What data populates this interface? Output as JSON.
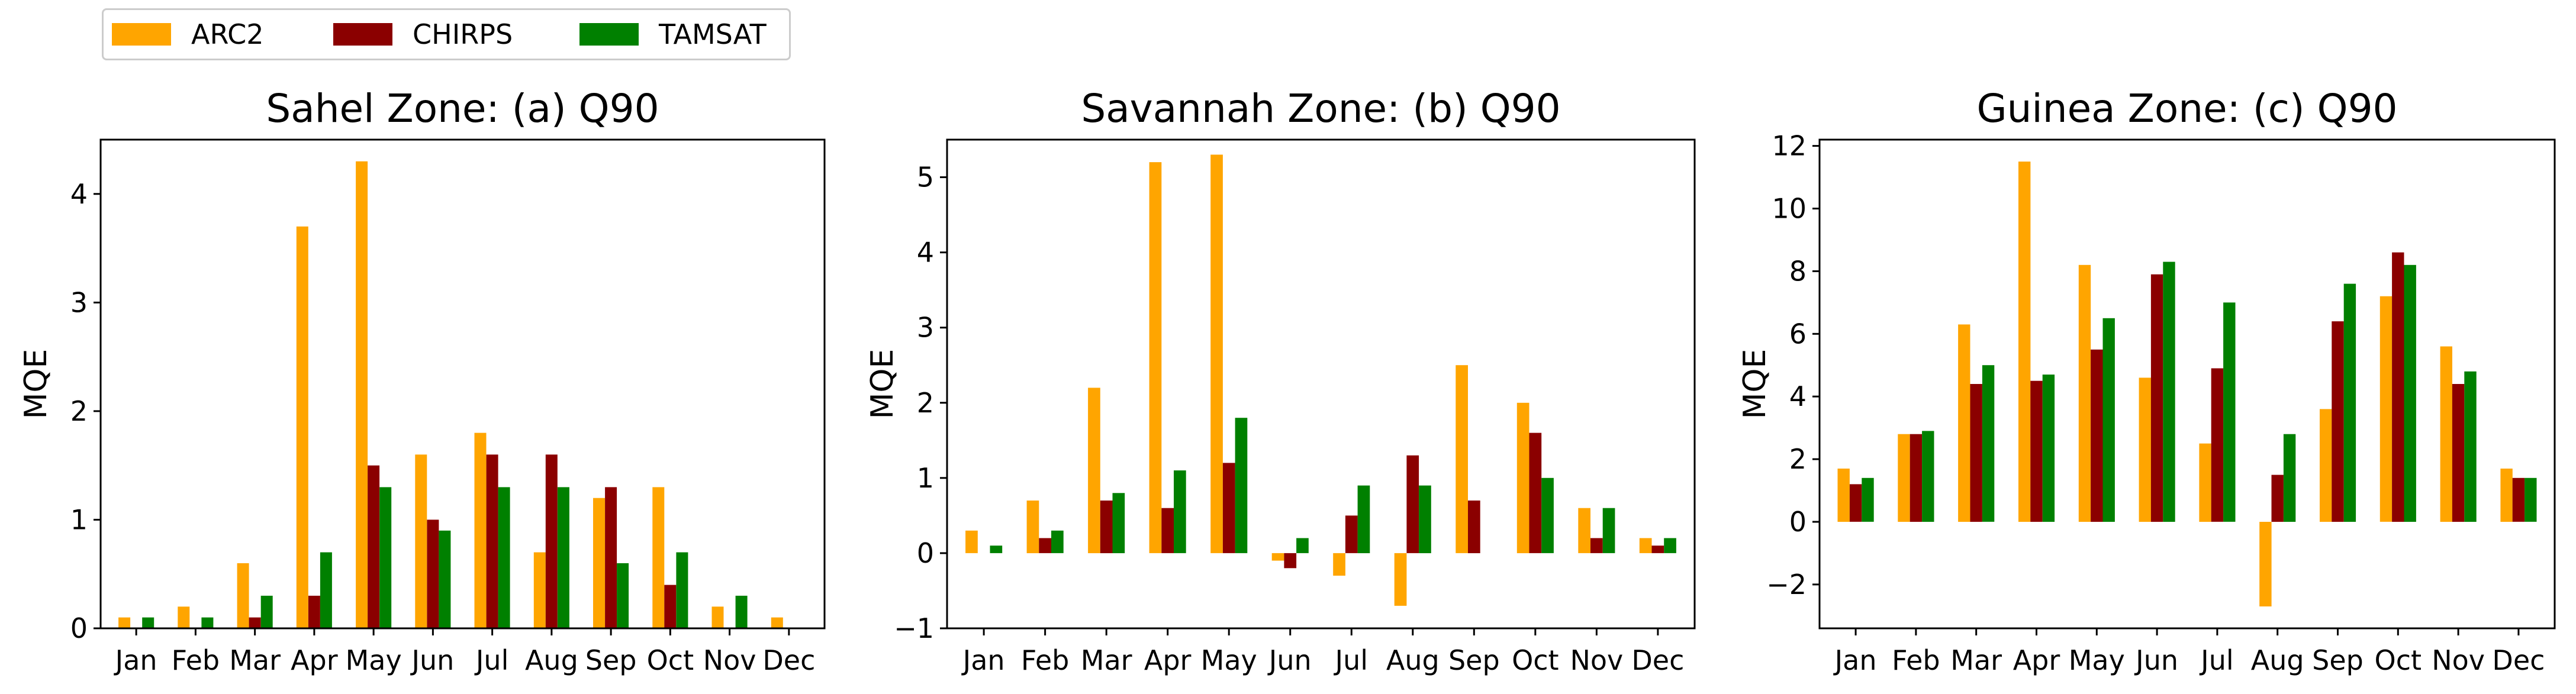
{
  "legend": [
    {
      "name": "ARC2",
      "color": "#FFA500"
    },
    {
      "name": "CHIRPS",
      "color": "#8B0000"
    },
    {
      "name": "TAMSAT",
      "color": "#008000"
    }
  ],
  "chart_data": [
    {
      "type": "bar",
      "title": "Sahel Zone: (a) Q90",
      "ylabel": "MQE",
      "xlabel": "",
      "ylim": [
        0,
        4.5
      ],
      "yticks": [
        0,
        1,
        2,
        3,
        4
      ],
      "categories": [
        "Jan",
        "Feb",
        "Mar",
        "Apr",
        "May",
        "Jun",
        "Jul",
        "Aug",
        "Sep",
        "Oct",
        "Nov",
        "Dec"
      ],
      "series": [
        {
          "name": "ARC2",
          "values": [
            0.1,
            0.2,
            0.6,
            3.7,
            4.3,
            1.6,
            1.8,
            0.7,
            1.2,
            1.3,
            0.2,
            0.1
          ]
        },
        {
          "name": "CHIRPS",
          "values": [
            0.0,
            0.0,
            0.1,
            0.3,
            1.5,
            1.0,
            1.6,
            1.6,
            1.3,
            0.4,
            0.0,
            0.0
          ]
        },
        {
          "name": "TAMSAT",
          "values": [
            0.1,
            0.1,
            0.3,
            0.7,
            1.3,
            0.9,
            1.3,
            1.3,
            0.6,
            0.7,
            0.3,
            0.0
          ]
        }
      ],
      "grid": false
    },
    {
      "type": "bar",
      "title": "Savannah Zone: (b) Q90",
      "ylabel": "MQE",
      "xlabel": "",
      "ylim": [
        -1,
        5.5
      ],
      "yticks": [
        -1,
        0,
        1,
        2,
        3,
        4,
        5
      ],
      "categories": [
        "Jan",
        "Feb",
        "Mar",
        "Apr",
        "May",
        "Jun",
        "Jul",
        "Aug",
        "Sep",
        "Oct",
        "Nov",
        "Dec"
      ],
      "series": [
        {
          "name": "ARC2",
          "values": [
            0.3,
            0.7,
            2.2,
            5.2,
            5.3,
            -0.1,
            -0.3,
            -0.7,
            2.5,
            2.0,
            0.6,
            0.2
          ]
        },
        {
          "name": "CHIRPS",
          "values": [
            0.0,
            0.2,
            0.7,
            0.6,
            1.2,
            -0.2,
            0.5,
            1.3,
            0.7,
            1.6,
            0.2,
            0.1
          ]
        },
        {
          "name": "TAMSAT",
          "values": [
            0.1,
            0.3,
            0.8,
            1.1,
            1.8,
            0.2,
            0.9,
            0.9,
            0.0,
            1.0,
            0.6,
            0.2
          ]
        }
      ],
      "grid": false
    },
    {
      "type": "bar",
      "title": "Guinea Zone: (c) Q90",
      "ylabel": "MQE",
      "xlabel": "",
      "ylim": [
        -3.4,
        12.2
      ],
      "yticks": [
        -2,
        0,
        2,
        4,
        6,
        8,
        10,
        12
      ],
      "categories": [
        "Jan",
        "Feb",
        "Mar",
        "Apr",
        "May",
        "Jun",
        "Jul",
        "Aug",
        "Sep",
        "Oct",
        "Nov",
        "Dec"
      ],
      "series": [
        {
          "name": "ARC2",
          "values": [
            1.7,
            2.8,
            6.3,
            11.5,
            8.2,
            4.6,
            2.5,
            -2.7,
            3.6,
            7.2,
            5.6,
            1.7
          ]
        },
        {
          "name": "CHIRPS",
          "values": [
            1.2,
            2.8,
            4.4,
            4.5,
            5.5,
            7.9,
            4.9,
            1.5,
            6.4,
            8.6,
            4.4,
            1.4
          ]
        },
        {
          "name": "TAMSAT",
          "values": [
            1.4,
            2.9,
            5.0,
            4.7,
            6.5,
            8.3,
            7.0,
            2.8,
            7.6,
            8.2,
            4.8,
            1.4
          ]
        }
      ],
      "grid": false
    }
  ]
}
